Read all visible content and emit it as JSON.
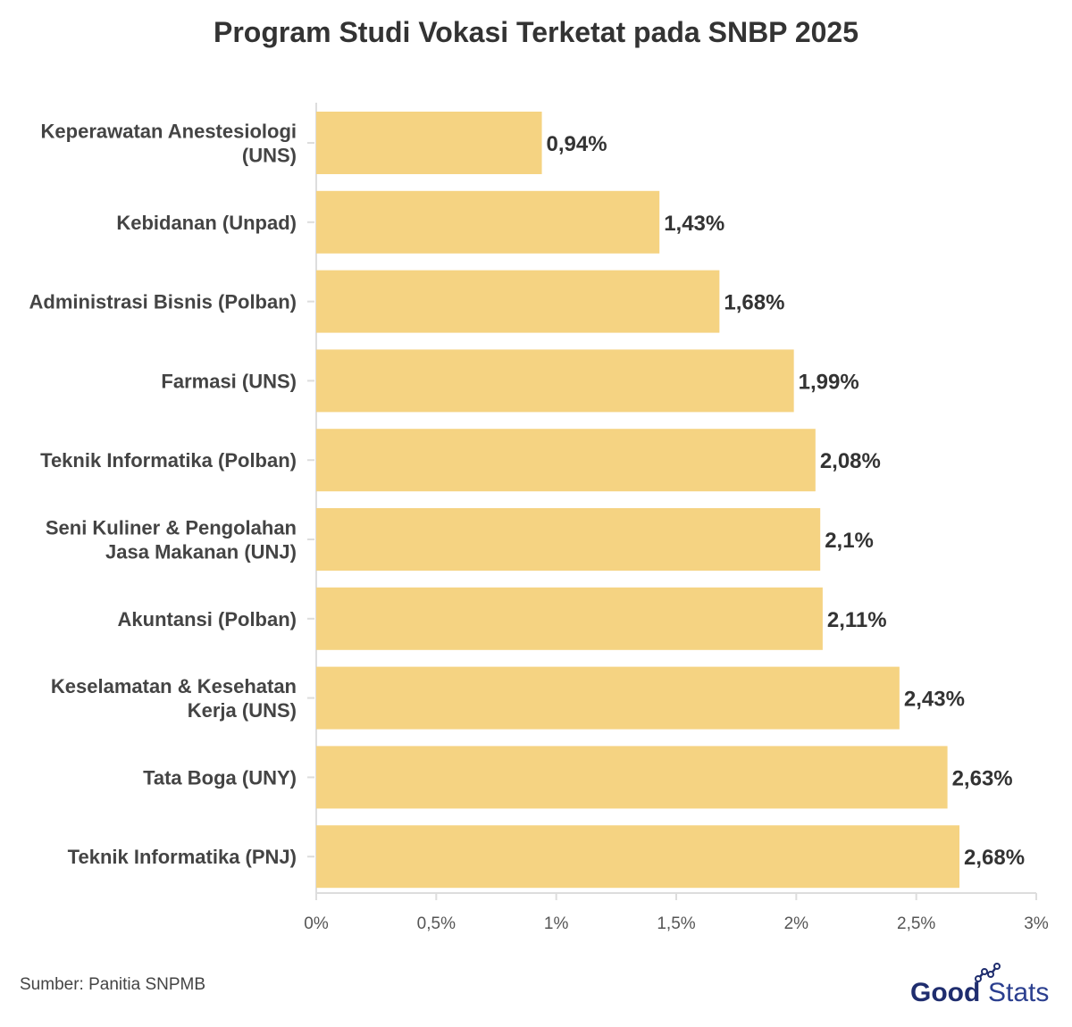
{
  "chart_data": {
    "type": "bar",
    "orientation": "horizontal",
    "title": "Program Studi Vokasi Terketat pada SNBP 2025",
    "categories": [
      [
        "Keperawatan Anestesiologi",
        "(UNS)"
      ],
      [
        "Kebidanan (Unpad)"
      ],
      [
        "Administrasi Bisnis (Polban)"
      ],
      [
        "Farmasi (UNS)"
      ],
      [
        "Teknik Informatika (Polban)"
      ],
      [
        "Seni Kuliner & Pengolahan",
        "Jasa Makanan (UNJ)"
      ],
      [
        "Akuntansi (Polban)"
      ],
      [
        "Keselamatan & Kesehatan",
        "Kerja (UNS)"
      ],
      [
        "Tata Boga (UNY)"
      ],
      [
        "Teknik Informatika (PNJ)"
      ]
    ],
    "values": [
      0.94,
      1.43,
      1.68,
      1.99,
      2.08,
      2.1,
      2.11,
      2.43,
      2.63,
      2.68
    ],
    "value_labels": [
      "0,94%",
      "1,43%",
      "1,68%",
      "1,99%",
      "2,08%",
      "2,1%",
      "2,11%",
      "2,43%",
      "2,63%",
      "2,68%"
    ],
    "xlim": [
      0,
      3
    ],
    "ticks": [
      0,
      0.5,
      1,
      1.5,
      2,
      2.5,
      3
    ],
    "tick_labels": [
      "0%",
      "0,5%",
      "1%",
      "1,5%",
      "2%",
      "2,5%",
      "3%"
    ],
    "xlabel": "",
    "ylabel": "",
    "grid": false,
    "bar_color": "#f5d382"
  },
  "footer": {
    "source": "Sumber: Panitia SNPMB",
    "logo_good": "Good",
    "logo_stats": "Stats"
  },
  "colors": {
    "logo_good": "#1f2d6e",
    "logo_stats": "#2b3f8f",
    "axis": "#dddddd"
  }
}
